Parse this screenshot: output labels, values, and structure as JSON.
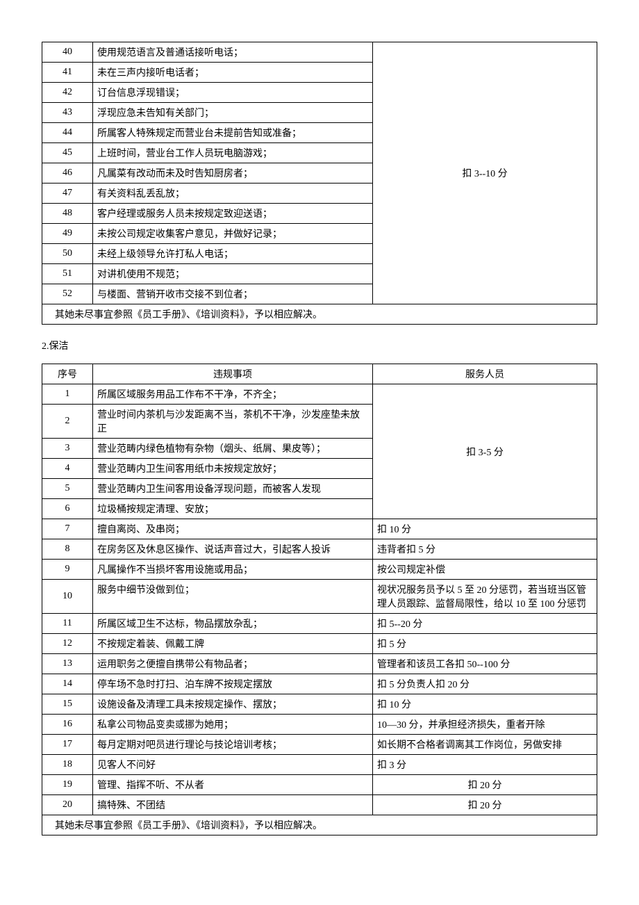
{
  "table1": {
    "rows": [
      {
        "num": "40",
        "desc": "使用规范语言及普通话接听电话；"
      },
      {
        "num": "41",
        "desc": "未在三声内接听电话者；"
      },
      {
        "num": "42",
        "desc": "订台信息浮现错误；"
      },
      {
        "num": "43",
        "desc": "浮现应急未告知有关部门；"
      },
      {
        "num": "44",
        "desc": "所属客人特殊规定而营业台未提前告知或准备；"
      },
      {
        "num": "45",
        "desc": "上班时间，营业台工作人员玩电脑游戏；"
      },
      {
        "num": "46",
        "desc": "凡属菜有改动而未及时告知厨房者；"
      },
      {
        "num": "47",
        "desc": "有关资料乱丢乱放；"
      },
      {
        "num": "48",
        "desc": "客户经理或服务人员未按规定致迎送语；"
      },
      {
        "num": "49",
        "desc": "未按公司规定收集客户意见，并做好记录；"
      },
      {
        "num": "50",
        "desc": "未经上级领导允许打私人电话；"
      },
      {
        "num": "51",
        "desc": "对讲机使用不规范；"
      },
      {
        "num": "52",
        "desc": "与楼面、营销开收市交接不到位者；"
      }
    ],
    "penalty": "扣 3--10 分",
    "footer": "其她未尽事宜参照《员工手册》、《培训资料》，予以相应解决。"
  },
  "section2": {
    "heading": "2.保洁"
  },
  "table2": {
    "headers": {
      "num": "序号",
      "desc": "违规事项",
      "penalty": "服务人员"
    },
    "groupPenalty": "扣 3-5 分",
    "groupRows": [
      {
        "num": "1",
        "desc": "所属区域服务用品工作布不干净，不齐全；"
      },
      {
        "num": "2",
        "desc": "营业时间内茶机与沙发距离不当，茶机不干净，沙发座垫未放正"
      },
      {
        "num": "3",
        "desc": "营业范畴内绿色植物有杂物（烟头、纸屑、果皮等）；"
      },
      {
        "num": "4",
        "desc": "营业范畴内卫生间客用纸巾未按规定放好；"
      },
      {
        "num": "5",
        "desc": "营业范畴内卫生间客用设备浮现问题，而被客人发现"
      },
      {
        "num": "6",
        "desc": "垃圾桶按规定清理、安放；"
      }
    ],
    "rows": [
      {
        "num": "7",
        "desc": "擅自离岗、及串岗；",
        "penalty": "扣 10 分"
      },
      {
        "num": "8",
        "desc": "在房务区及休息区操作、说话声音过大，引起客人投诉",
        "penalty": "违背者扣 5 分"
      },
      {
        "num": "9",
        "desc": "凡属操作不当损坏客用设施或用品；",
        "penalty": "按公司规定补偿"
      },
      {
        "num": "10",
        "desc": "服务中细节没做到位；",
        "penalty": "视状况服务员予以 5 至 20 分惩罚，若当班当区管理人员跟踪、监督局限性，给以 10 至 100 分惩罚"
      },
      {
        "num": "11",
        "desc": "所属区域卫生不达标，物品摆放杂乱；",
        "penalty": "扣 5--20 分"
      },
      {
        "num": "12",
        "desc": "不按规定着装、佩戴工牌",
        "penalty": "扣 5 分"
      },
      {
        "num": "13",
        "desc": "运用职务之便擅自携带公有物品者；",
        "penalty": "管理者和该员工各扣 50--100 分"
      },
      {
        "num": "14",
        "desc": "停车场不急时打扫、泊车牌不按规定摆放",
        "penalty": "扣 5 分负责人扣 20 分"
      },
      {
        "num": "15",
        "desc": "设施设备及清理工具未按规定操作、摆放；",
        "penalty": "扣 10 分"
      },
      {
        "num": "16",
        "desc": "私拿公司物品变卖或挪为她用；",
        "penalty": "10—30 分，并承担经济损失，重者开除"
      },
      {
        "num": "17",
        "desc": "每月定期对吧员进行理论与技论培训考核；",
        "penalty": "如长期不合格者调离其工作岗位，另做安排"
      },
      {
        "num": "18",
        "desc": "见客人不问好",
        "penalty": "扣 3 分"
      },
      {
        "num": "19",
        "desc": "管理、指挥不听、不从者",
        "penalty": "扣 20 分",
        "center": true
      },
      {
        "num": "20",
        "desc": "搞特殊、不团结",
        "penalty": "扣 20 分",
        "center": true
      }
    ],
    "footer": "其她未尽事宜参照《员工手册》、《培训资料》，予以相应解决。"
  }
}
